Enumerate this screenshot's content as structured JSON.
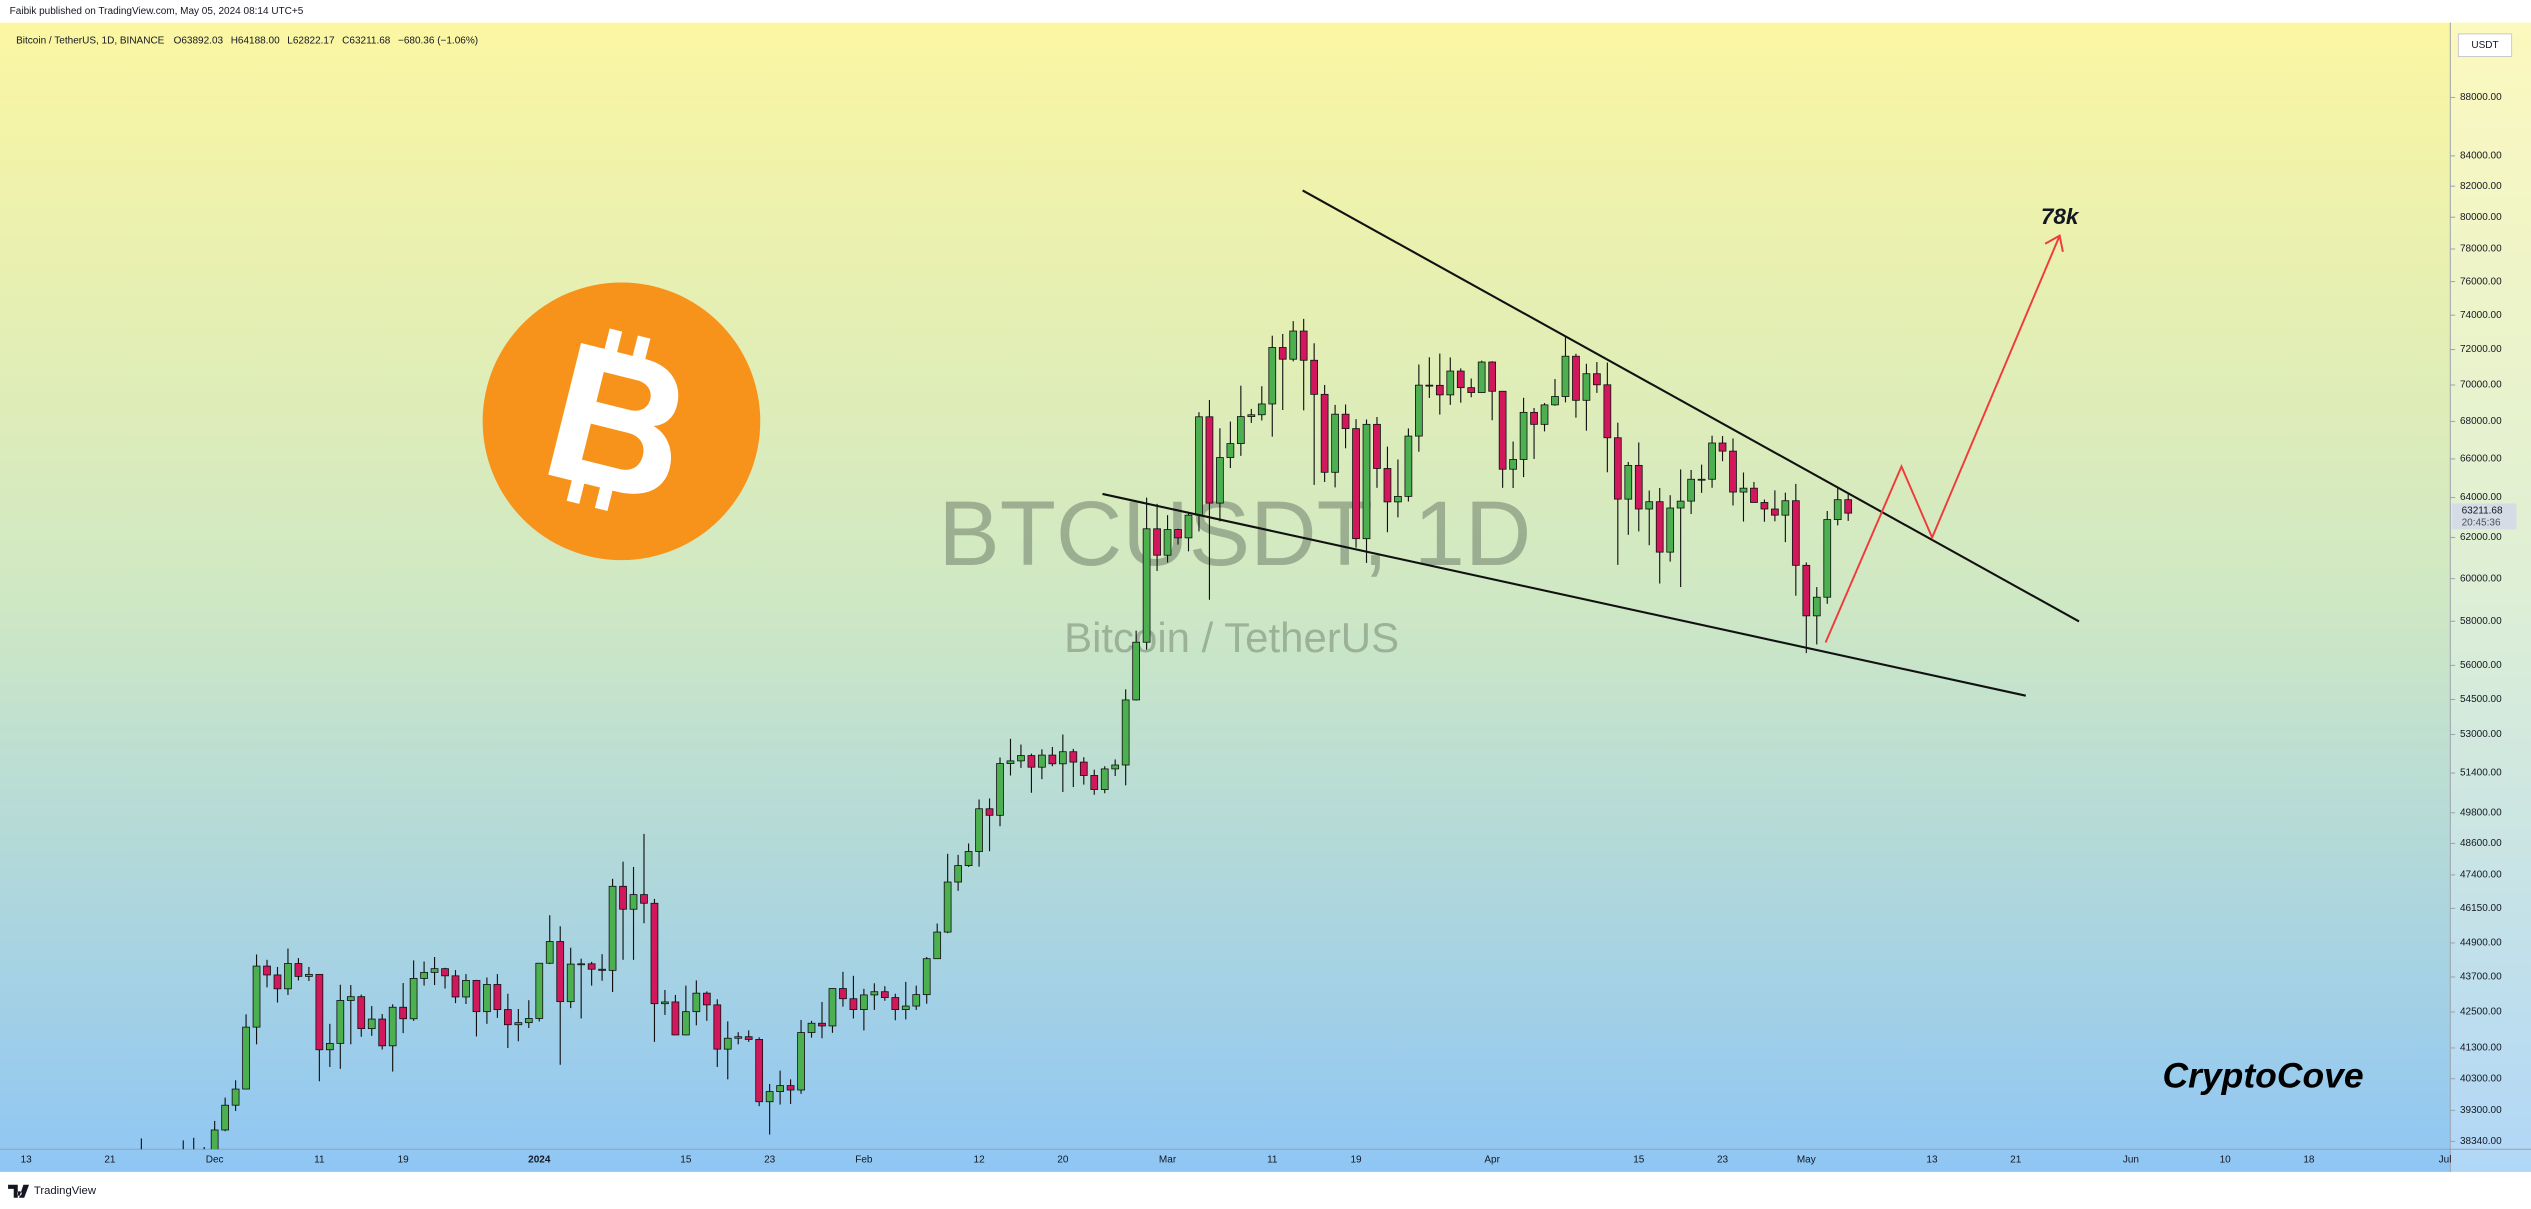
{
  "header": {
    "publisher": "Faibik published on TradingView.com, May 05, 2024 08:14 UTC+5",
    "symbol": "Bitcoin / TetherUS, 1D, BINANCE",
    "open": "O63892.03",
    "high": "H64188.00",
    "low": "L62822.17",
    "close": "C63211.68",
    "change": "−680.36 (−1.06%)"
  },
  "chart_data": {
    "type": "candlestick",
    "log_scale": true,
    "grid": false,
    "up_color": "#4caf50",
    "down_color": "#d2185c",
    "ylim": [
      38100,
      93400
    ],
    "yticks": [
      {
        "value": 88000,
        "label": "88000.00"
      },
      {
        "value": 84000,
        "label": "84000.00"
      },
      {
        "value": 82000,
        "label": "82000.00"
      },
      {
        "value": 80000,
        "label": "80000.00"
      },
      {
        "value": 78000,
        "label": "78000.00"
      },
      {
        "value": 76000,
        "label": "76000.00"
      },
      {
        "value": 74000,
        "label": "74000.00"
      },
      {
        "value": 72000,
        "label": "72000.00"
      },
      {
        "value": 70000,
        "label": "70000.00"
      },
      {
        "value": 68000,
        "label": "68000.00"
      },
      {
        "value": 66000,
        "label": "66000.00"
      },
      {
        "value": 64000,
        "label": "64000.00"
      },
      {
        "value": 62000,
        "label": "62000.00"
      },
      {
        "value": 60000,
        "label": "60000.00"
      },
      {
        "value": 58000,
        "label": "58000.00"
      },
      {
        "value": 56000,
        "label": "56000.00"
      },
      {
        "value": 54500,
        "label": "54500.00"
      },
      {
        "value": 53000,
        "label": "53000.00"
      },
      {
        "value": 51400,
        "label": "51400.00"
      },
      {
        "value": 49800,
        "label": "49800.00"
      },
      {
        "value": 48600,
        "label": "48600.00"
      },
      {
        "value": 47400,
        "label": "47400.00"
      },
      {
        "value": 46150,
        "label": "46150.00"
      },
      {
        "value": 44900,
        "label": "44900.00"
      },
      {
        "value": 43700,
        "label": "43700.00"
      },
      {
        "value": 42500,
        "label": "42500.00"
      },
      {
        "value": 41300,
        "label": "41300.00"
      },
      {
        "value": 40300,
        "label": "40300.00"
      },
      {
        "value": 39300,
        "label": "39300.00"
      },
      {
        "value": 38340,
        "label": "38340.00"
      }
    ],
    "categories": [
      null,
      null,
      "13",
      null,
      null,
      null,
      null,
      null,
      null,
      null,
      "21",
      null,
      null,
      null,
      null,
      null,
      null,
      null,
      null,
      null,
      "Dec",
      null,
      null,
      null,
      null,
      null,
      null,
      null,
      null,
      null,
      "11",
      null,
      null,
      null,
      null,
      null,
      null,
      null,
      "19",
      null,
      null,
      null,
      null,
      null,
      null,
      null,
      null,
      null,
      null,
      null,
      null,
      "2024",
      null,
      null,
      null,
      null,
      null,
      null,
      null,
      null,
      null,
      null,
      null,
      null,
      null,
      "15",
      null,
      null,
      null,
      null,
      null,
      null,
      null,
      "23",
      null,
      null,
      null,
      null,
      null,
      null,
      null,
      null,
      "Feb",
      null,
      null,
      null,
      null,
      null,
      null,
      null,
      null,
      null,
      null,
      "12",
      null,
      null,
      null,
      null,
      null,
      null,
      null,
      "20",
      null,
      null,
      null,
      null,
      null,
      null,
      null,
      null,
      null,
      "Mar",
      null,
      null,
      null,
      null,
      null,
      null,
      null,
      null,
      null,
      "11",
      null,
      null,
      null,
      null,
      null,
      null,
      null,
      "19",
      null,
      null,
      null,
      null,
      null,
      null,
      null,
      null,
      null,
      null,
      null,
      null,
      "Apr",
      null,
      null,
      null,
      null,
      null,
      null,
      null,
      null,
      null,
      null,
      null,
      null,
      null,
      "15",
      null,
      null,
      null,
      null,
      null,
      null,
      null,
      "23",
      null,
      null,
      null,
      null,
      null,
      null,
      null,
      "May",
      null,
      null,
      null,
      null,
      null,
      null,
      null,
      null,
      null,
      null,
      null,
      "13",
      null,
      null,
      null,
      null,
      null,
      null,
      null,
      "21",
      null,
      null,
      null,
      null,
      null,
      null,
      null,
      null,
      null,
      null,
      "Jun",
      null,
      null,
      null,
      null,
      null,
      null,
      null,
      null,
      "10",
      null,
      null,
      null,
      null,
      null,
      null,
      null,
      "18",
      null,
      null,
      null,
      null,
      null,
      null,
      null,
      null,
      null,
      null,
      null,
      null,
      "Jul"
    ],
    "open": [
      null,
      null,
      null,
      null,
      null,
      null,
      null,
      null,
      null,
      null,
      null,
      null,
      null,
      37290,
      37720,
      37800,
      37450,
      37240,
      37830,
      37860,
      37720,
      38690,
      39460,
      39970,
      41990,
      44080,
      43770,
      43290,
      44170,
      43720,
      43790,
      41240,
      41450,
      42890,
      43020,
      41940,
      42260,
      41370,
      42660,
      42270,
      43650,
      43860,
      43990,
      43740,
      43010,
      43580,
      42510,
      43440,
      42580,
      42070,
      42140,
      42280,
      44180,
      44950,
      42850,
      44150,
      44160,
      43970,
      43930,
      46970,
      46120,
      46660,
      46340,
      42780,
      42840,
      41730,
      42510,
      43140,
      42740,
      41260,
      41620,
      41670,
      41580,
      39570,
      39890,
      40080,
      39940,
      41810,
      42120,
      42030,
      43300,
      42950,
      42580,
      43080,
      43190,
      42990,
      42580,
      42700,
      43090,
      44340,
      45290,
      47130,
      47750,
      48290,
      49960,
      49700,
      51790,
      51900,
      52120,
      51640,
      52140,
      51780,
      52280,
      51850,
      51300,
      50730,
      51570,
      51730,
      54480,
      57040,
      62430,
      61130,
      62390,
      61980,
      63110,
      68250,
      63720,
      66070,
      66810,
      68260,
      68360,
      68950,
      72120,
      71450,
      73070,
      71390,
      69480,
      65300,
      68390,
      67610,
      61940,
      67840,
      65500,
      63780,
      64060,
      67210,
      69990,
      69980,
      69450,
      70780,
      69850,
      69580,
      71290,
      69650,
      65460,
      65970,
      68490,
      67840,
      68900,
      69360,
      71620,
      69150,
      70630,
      70010,
      67120,
      63920,
      65660,
      63420,
      63790,
      61280,
      63470,
      63820,
      64940,
      64940,
      66840,
      66410,
      64280,
      64480,
      63750,
      63420,
      63110,
      63840,
      60640,
      58250,
      59120,
      62890,
      63892.03,
      null,
      null,
      null,
      null,
      null,
      null,
      null,
      null,
      null,
      null,
      null,
      null,
      null,
      null,
      null,
      null,
      null,
      null,
      null,
      null,
      null,
      null,
      null,
      null,
      null,
      null,
      null,
      null,
      null,
      null,
      null,
      null,
      null,
      null,
      null,
      null,
      null,
      null,
      null,
      null,
      null,
      null,
      null,
      null,
      null,
      null,
      null,
      null,
      null,
      null,
      null,
      null,
      null,
      null,
      null,
      null,
      null
    ],
    "high": [
      null,
      null,
      null,
      null,
      null,
      null,
      null,
      null,
      null,
      null,
      null,
      null,
      null,
      38430,
      37890,
      37840,
      37580,
      38370,
      38450,
      38170,
      38970,
      39700,
      40250,
      42420,
      44490,
      44300,
      44050,
      44700,
      44360,
      44050,
      43800,
      42100,
      43430,
      43420,
      43090,
      42700,
      42430,
      42760,
      43490,
      44280,
      44240,
      44400,
      44020,
      43940,
      43800,
      43600,
      43680,
      43800,
      43120,
      42600,
      42900,
      44180,
      45900,
      45500,
      44730,
      44340,
      44230,
      44500,
      47250,
      47900,
      47700,
      48970,
      46500,
      43250,
      43080,
      43400,
      43580,
      43200,
      42930,
      42180,
      41820,
      41880,
      41650,
      40130,
      40560,
      40280,
      42230,
      42200,
      42840,
      43300,
      43880,
      43740,
      43290,
      43480,
      43380,
      43120,
      43530,
      43400,
      44400,
      45600,
      48200,
      48160,
      48600,
      50330,
      50370,
      52040,
      52820,
      52580,
      52200,
      52380,
      52480,
      53000,
      52400,
      52050,
      51540,
      51680,
      51960,
      54940,
      57570,
      64000,
      63680,
      63110,
      62430,
      63230,
      68500,
      69170,
      67630,
      67990,
      69960,
      68680,
      69930,
      72800,
      72900,
      73650,
      73780,
      72360,
      70000,
      68900,
      68920,
      68120,
      68100,
      68240,
      66650,
      65970,
      67620,
      71150,
      71560,
      71770,
      71550,
      70930,
      70360,
      71370,
      71340,
      69670,
      66920,
      69290,
      68730,
      69000,
      70330,
      72800,
      71760,
      71190,
      71290,
      71260,
      67930,
      65840,
      66870,
      64360,
      64490,
      64120,
      65450,
      65420,
      65700,
      67230,
      67210,
      67080,
      65290,
      64800,
      63900,
      64370,
      64250,
      64700,
      60780,
      59600,
      63320,
      64500,
      64188,
      null,
      null,
      null,
      null,
      null,
      null,
      null,
      null,
      null,
      null,
      null,
      null,
      null,
      null,
      null,
      null,
      null,
      null,
      null,
      null,
      null,
      null,
      null,
      null,
      null,
      null,
      null,
      null,
      null,
      null,
      null,
      null,
      null,
      null,
      null,
      null,
      null,
      null,
      null,
      null,
      null,
      null,
      null,
      null,
      null,
      null,
      null,
      null,
      null,
      null,
      null,
      null,
      null,
      null,
      null,
      null,
      null
    ],
    "low": [
      null,
      null,
      null,
      null,
      null,
      null,
      null,
      null,
      null,
      null,
      null,
      null,
      null,
      37250,
      37600,
      37150,
      36750,
      36880,
      37600,
      37500,
      37620,
      38650,
      39280,
      39970,
      41420,
      43340,
      42820,
      43080,
      43580,
      43560,
      40220,
      40680,
      40620,
      41420,
      41670,
      41700,
      41250,
      40530,
      41790,
      42200,
      43400,
      43420,
      43300,
      42800,
      42770,
      41680,
      42100,
      42300,
      41300,
      41520,
      41960,
      42180,
      44150,
      40750,
      42630,
      42280,
      43400,
      43570,
      43180,
      44300,
      44300,
      45610,
      41500,
      42400,
      41720,
      41720,
      42050,
      42200,
      40680,
      40280,
      41420,
      41500,
      39430,
      38550,
      39480,
      39500,
      39820,
      41640,
      41620,
      41800,
      42680,
      42280,
      41880,
      42570,
      42880,
      42220,
      42250,
      42570,
      42780,
      44330,
      45250,
      46800,
      47700,
      47710,
      48300,
      49270,
      51300,
      51610,
      50600,
      51150,
      51680,
      50630,
      50830,
      50930,
      50520,
      50580,
      51280,
      50900,
      54450,
      56700,
      60370,
      60780,
      61650,
      61320,
      62300,
      59000,
      62800,
      65520,
      66160,
      67920,
      68050,
      67180,
      68620,
      71330,
      68600,
      64650,
      64800,
      64520,
      66560,
      61500,
      60760,
      64500,
      62260,
      63000,
      63800,
      66380,
      69280,
      68370,
      68900,
      69020,
      69320,
      69560,
      68060,
      64500,
      64490,
      65050,
      66000,
      67460,
      68850,
      69040,
      68200,
      67500,
      69560,
      65300,
      60660,
      62130,
      62300,
      61620,
      59770,
      60820,
      59600,
      63170,
      64240,
      64500,
      65880,
      63600,
      62790,
      63750,
      62780,
      62800,
      61770,
      59190,
      56550,
      56940,
      58810,
      62600,
      62822.17,
      null,
      null,
      null,
      null,
      null,
      null,
      null,
      null,
      null,
      null,
      null,
      null,
      null,
      null,
      null,
      null,
      null,
      null,
      null,
      null,
      null,
      null,
      null,
      null,
      null,
      null,
      null,
      null,
      null,
      null,
      null,
      null,
      null,
      null,
      null,
      null,
      null,
      null,
      null,
      null,
      null,
      null,
      null,
      null,
      null,
      null,
      null,
      null,
      null,
      null,
      null,
      null,
      null,
      null,
      null,
      null,
      null
    ],
    "close": [
      null,
      null,
      null,
      null,
      null,
      null,
      null,
      null,
      null,
      null,
      null,
      null,
      null,
      37720,
      37800,
      37450,
      37240,
      37830,
      37860,
      37720,
      38690,
      39460,
      39970,
      41990,
      44080,
      43770,
      43290,
      44170,
      43720,
      43790,
      41240,
      41450,
      42890,
      43020,
      41940,
      42260,
      41370,
      42660,
      42270,
      43650,
      43860,
      43990,
      43740,
      43010,
      43580,
      42510,
      43440,
      42580,
      42070,
      42140,
      42280,
      44180,
      44950,
      42850,
      44150,
      44160,
      43970,
      43930,
      46970,
      46120,
      46660,
      46340,
      42780,
      42840,
      41730,
      42510,
      43140,
      42740,
      41260,
      41620,
      41670,
      41580,
      39570,
      39890,
      40080,
      39940,
      41810,
      42120,
      42030,
      43300,
      42950,
      42580,
      43080,
      43190,
      42990,
      42580,
      42700,
      43090,
      44340,
      45290,
      47130,
      47750,
      48290,
      49960,
      49700,
      51790,
      51900,
      52120,
      51640,
      52140,
      51780,
      52280,
      51850,
      51300,
      50730,
      51570,
      51730,
      54480,
      57040,
      62430,
      61130,
      62390,
      61980,
      63110,
      68250,
      63720,
      66070,
      66810,
      68260,
      68360,
      68950,
      72120,
      71450,
      73070,
      71390,
      69480,
      65300,
      68390,
      67610,
      61940,
      67840,
      65500,
      63780,
      64060,
      67210,
      69990,
      69980,
      69450,
      70780,
      69850,
      69580,
      71290,
      69650,
      65460,
      65970,
      68490,
      67840,
      68900,
      69360,
      71620,
      69150,
      70630,
      70010,
      67120,
      63920,
      65660,
      63420,
      63790,
      61280,
      63470,
      63820,
      64940,
      64940,
      66840,
      66410,
      64280,
      64480,
      63750,
      63420,
      63110,
      63840,
      60640,
      58250,
      59120,
      62890,
      63892.03,
      63211.68,
      null,
      null,
      null,
      null,
      null,
      null,
      null,
      null,
      null,
      null,
      null,
      null,
      null,
      null,
      null,
      null,
      null,
      null,
      null,
      null,
      null,
      null,
      null,
      null,
      null,
      null,
      null,
      null,
      null,
      null,
      null,
      null,
      null,
      null,
      null,
      null,
      null,
      null,
      null,
      null,
      null,
      null,
      null,
      null,
      null,
      null,
      null,
      null,
      null,
      null,
      null,
      null,
      null,
      null,
      null,
      null,
      null
    ],
    "currency": "USDT",
    "last_price_label": "63211.68",
    "countdown": "20:45:36",
    "watermark": "BTCUSDT, 1D",
    "watermark_subtitle": "Bitcoin / TetherUS",
    "annotation": "78k",
    "signature": "CryptoCove"
  },
  "footer": {
    "brand": "TradingView"
  }
}
